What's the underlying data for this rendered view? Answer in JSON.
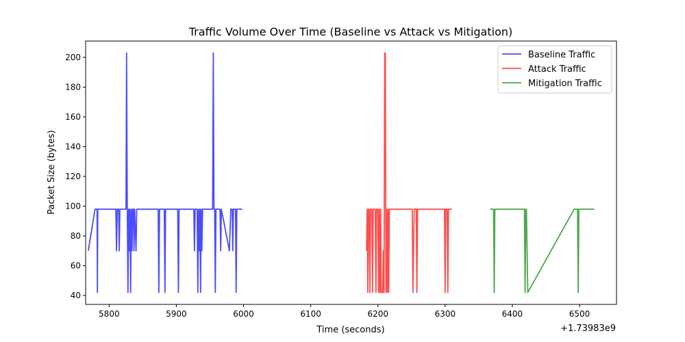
{
  "chart_data": {
    "type": "line",
    "title": "Traffic Volume Over Time (Baseline vs Attack vs Mitigation)",
    "xlabel": "Time (seconds)",
    "ylabel": "Packet Size (bytes)",
    "x_offset_label": "+1.73983e9",
    "xlim": [
      5765,
      6555
    ],
    "ylim": [
      34,
      211
    ],
    "x_ticks": [
      5800,
      5900,
      6000,
      6100,
      6200,
      6300,
      6400,
      6500
    ],
    "x_tick_labels": [
      "5800",
      "5900",
      "6000",
      "6100",
      "6200",
      "6300",
      "6400",
      "6500"
    ],
    "y_ticks": [
      40,
      60,
      80,
      100,
      120,
      140,
      160,
      180,
      200
    ],
    "y_tick_labels": [
      "40",
      "60",
      "80",
      "100",
      "120",
      "140",
      "160",
      "180",
      "200"
    ],
    "grid": false,
    "legend_position": "top-right",
    "series": [
      {
        "name": "Baseline Traffic",
        "color": "#0000ff",
        "points": [
          [
            5769,
            70
          ],
          [
            5779,
            98
          ],
          [
            5782,
            98
          ],
          [
            5782.5,
            42
          ],
          [
            5783,
            98
          ],
          [
            5810,
            98
          ],
          [
            5811,
            70
          ],
          [
            5812,
            98
          ],
          [
            5814,
            98
          ],
          [
            5815,
            70
          ],
          [
            5816,
            98
          ],
          [
            5825,
            98
          ],
          [
            5826,
            203
          ],
          [
            5827,
            98
          ],
          [
            5828,
            42
          ],
          [
            5829,
            98
          ],
          [
            5830,
            70
          ],
          [
            5831,
            98
          ],
          [
            5832,
            42
          ],
          [
            5833,
            98
          ],
          [
            5834,
            70
          ],
          [
            5835,
            98
          ],
          [
            5836,
            98
          ],
          [
            5837,
            70
          ],
          [
            5838,
            98
          ],
          [
            5840,
            70
          ],
          [
            5841,
            98
          ],
          [
            5873,
            98
          ],
          [
            5874,
            42
          ],
          [
            5875,
            98
          ],
          [
            5882,
            98
          ],
          [
            5883,
            42
          ],
          [
            5884,
            98
          ],
          [
            5902,
            98
          ],
          [
            5903,
            42
          ],
          [
            5904,
            98
          ],
          [
            5926,
            98
          ],
          [
            5927,
            70
          ],
          [
            5928,
            98
          ],
          [
            5931,
            98
          ],
          [
            5932,
            42
          ],
          [
            5933,
            98
          ],
          [
            5934,
            70
          ],
          [
            5935,
            98
          ],
          [
            5936,
            42
          ],
          [
            5937,
            98
          ],
          [
            5938,
            70
          ],
          [
            5939,
            98
          ],
          [
            5954,
            98
          ],
          [
            5955,
            203
          ],
          [
            5956,
            98
          ],
          [
            5957,
            98
          ],
          [
            5958,
            42
          ],
          [
            5959,
            98
          ],
          [
            5965,
            98
          ],
          [
            5966,
            70
          ],
          [
            5967,
            98
          ],
          [
            5979,
            70
          ],
          [
            5981,
            98
          ],
          [
            5983,
            98
          ],
          [
            5984,
            70
          ],
          [
            5985,
            98
          ],
          [
            5988,
            98
          ],
          [
            5989,
            42
          ],
          [
            5990,
            98
          ],
          [
            5998,
            98
          ]
        ]
      },
      {
        "name": "Attack Traffic",
        "color": "#ff0000",
        "points": [
          [
            6183,
            70
          ],
          [
            6184,
            98
          ],
          [
            6185,
            42
          ],
          [
            6186,
            98
          ],
          [
            6187,
            98
          ],
          [
            6188,
            42
          ],
          [
            6189,
            98
          ],
          [
            6191,
            98
          ],
          [
            6192,
            42
          ],
          [
            6193,
            98
          ],
          [
            6196,
            98
          ],
          [
            6197,
            42
          ],
          [
            6198,
            98
          ],
          [
            6200,
            98
          ],
          [
            6201,
            42
          ],
          [
            6202,
            98
          ],
          [
            6203,
            42
          ],
          [
            6204,
            98
          ],
          [
            6205,
            42
          ],
          [
            6206,
            42
          ],
          [
            6207,
            42
          ],
          [
            6208,
            70
          ],
          [
            6209,
            42
          ],
          [
            6210,
            203
          ],
          [
            6211,
            203
          ],
          [
            6212,
            42
          ],
          [
            6213,
            98
          ],
          [
            6214,
            42
          ],
          [
            6215,
            98
          ],
          [
            6216,
            42
          ],
          [
            6217,
            98
          ],
          [
            6251,
            98
          ],
          [
            6252,
            42
          ],
          [
            6253,
            70
          ],
          [
            6254,
            98
          ],
          [
            6257,
            98
          ],
          [
            6258,
            42
          ],
          [
            6259,
            98
          ],
          [
            6299,
            98
          ],
          [
            6300,
            42
          ],
          [
            6301,
            98
          ],
          [
            6303,
            98
          ],
          [
            6304,
            42
          ],
          [
            6305,
            98
          ],
          [
            6310,
            98
          ]
        ]
      },
      {
        "name": "Mitigation Traffic",
        "color": "#008000",
        "points": [
          [
            6367,
            98
          ],
          [
            6372,
            98
          ],
          [
            6373,
            42
          ],
          [
            6374,
            98
          ],
          [
            6418,
            98
          ],
          [
            6419,
            42
          ],
          [
            6420,
            98
          ],
          [
            6421,
            98
          ],
          [
            6423,
            42
          ],
          [
            6492,
            98
          ],
          [
            6497,
            98
          ],
          [
            6498,
            42
          ],
          [
            6499,
            98
          ],
          [
            6522,
            98
          ]
        ]
      }
    ]
  }
}
